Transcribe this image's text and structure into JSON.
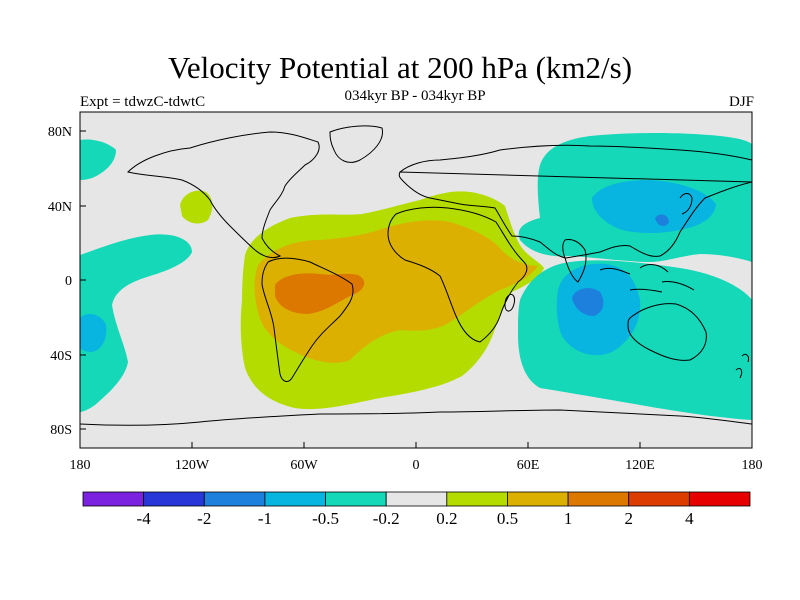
{
  "title": "Velocity Potential at 200 hPa (km2/s)",
  "subtitle_left": "Expt = tdwzC-tdwtC",
  "subtitle_center": "034kyr BP - 034kyr BP",
  "subtitle_right": "DJF",
  "lat_labels": [
    "80N",
    "40N",
    "0",
    "40S",
    "80S"
  ],
  "lon_labels": [
    "180",
    "120W",
    "60W",
    "0",
    "60E",
    "120E",
    "180"
  ],
  "colorbar": {
    "colors": [
      "#7a22e0",
      "#2838d8",
      "#1c80dc",
      "#08b4e0",
      "#14d8b8",
      "#e6e6e6",
      "#b4dc00",
      "#dcb000",
      "#dc7800",
      "#dc3c00",
      "#e60000"
    ],
    "labels": [
      "-4",
      "-2",
      "-1",
      "-0.5",
      "-0.2",
      "0.2",
      "0.5",
      "1",
      "2",
      "4"
    ]
  },
  "colors": {
    "neutral": "#e6e6e6",
    "weak_pos": "#b4dc00",
    "mod_pos": "#dcb000",
    "strong_pos": "#dc7800",
    "weak_neg": "#14d8b8",
    "mod_neg": "#08b4e0"
  }
}
